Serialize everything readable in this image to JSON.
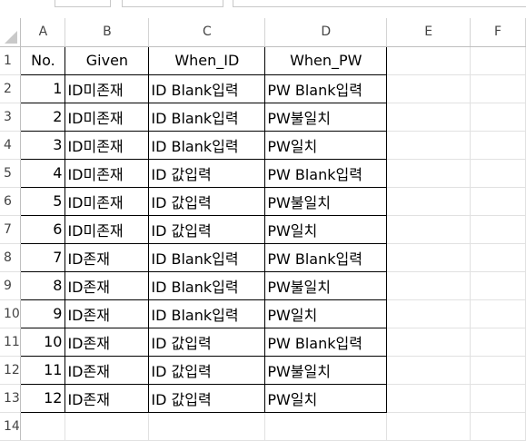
{
  "columns": [
    "A",
    "B",
    "C",
    "D",
    "E",
    "F"
  ],
  "rows": [
    {
      "no": "1",
      "cells": [
        "No.",
        "Given",
        "When_ID",
        "When_PW"
      ]
    },
    {
      "no": "2",
      "cells": [
        "1",
        "ID미존재",
        "ID Blank입력",
        "PW Blank입력"
      ]
    },
    {
      "no": "3",
      "cells": [
        "2",
        "ID미존재",
        "ID Blank입력",
        "PW불일치"
      ]
    },
    {
      "no": "4",
      "cells": [
        "3",
        "ID미존재",
        "ID Blank입력",
        "PW일치"
      ]
    },
    {
      "no": "5",
      "cells": [
        "4",
        "ID미존재",
        "ID 값입력",
        "PW Blank입력"
      ]
    },
    {
      "no": "6",
      "cells": [
        "5",
        "ID미존재",
        "ID 값입력",
        "PW불일치"
      ]
    },
    {
      "no": "7",
      "cells": [
        "6",
        "ID미존재",
        "ID 값입력",
        "PW일치"
      ]
    },
    {
      "no": "8",
      "cells": [
        "7",
        "ID존재",
        "ID Blank입력",
        "PW Blank입력"
      ]
    },
    {
      "no": "9",
      "cells": [
        "8",
        "ID존재",
        "ID Blank입력",
        "PW불일치"
      ]
    },
    {
      "no": "10",
      "cells": [
        "9",
        "ID존재",
        "ID Blank입력",
        "PW일치"
      ]
    },
    {
      "no": "11",
      "cells": [
        "10",
        "ID존재",
        "ID 값입력",
        "PW Blank입력"
      ]
    },
    {
      "no": "12",
      "cells": [
        "11",
        "ID존재",
        "ID 값입력",
        "PW불일치"
      ]
    },
    {
      "no": "13",
      "cells": [
        "12",
        "ID존재",
        "ID 값입력",
        "PW일치"
      ]
    },
    {
      "no": "14",
      "cells": [
        "",
        "",
        "",
        ""
      ]
    }
  ]
}
